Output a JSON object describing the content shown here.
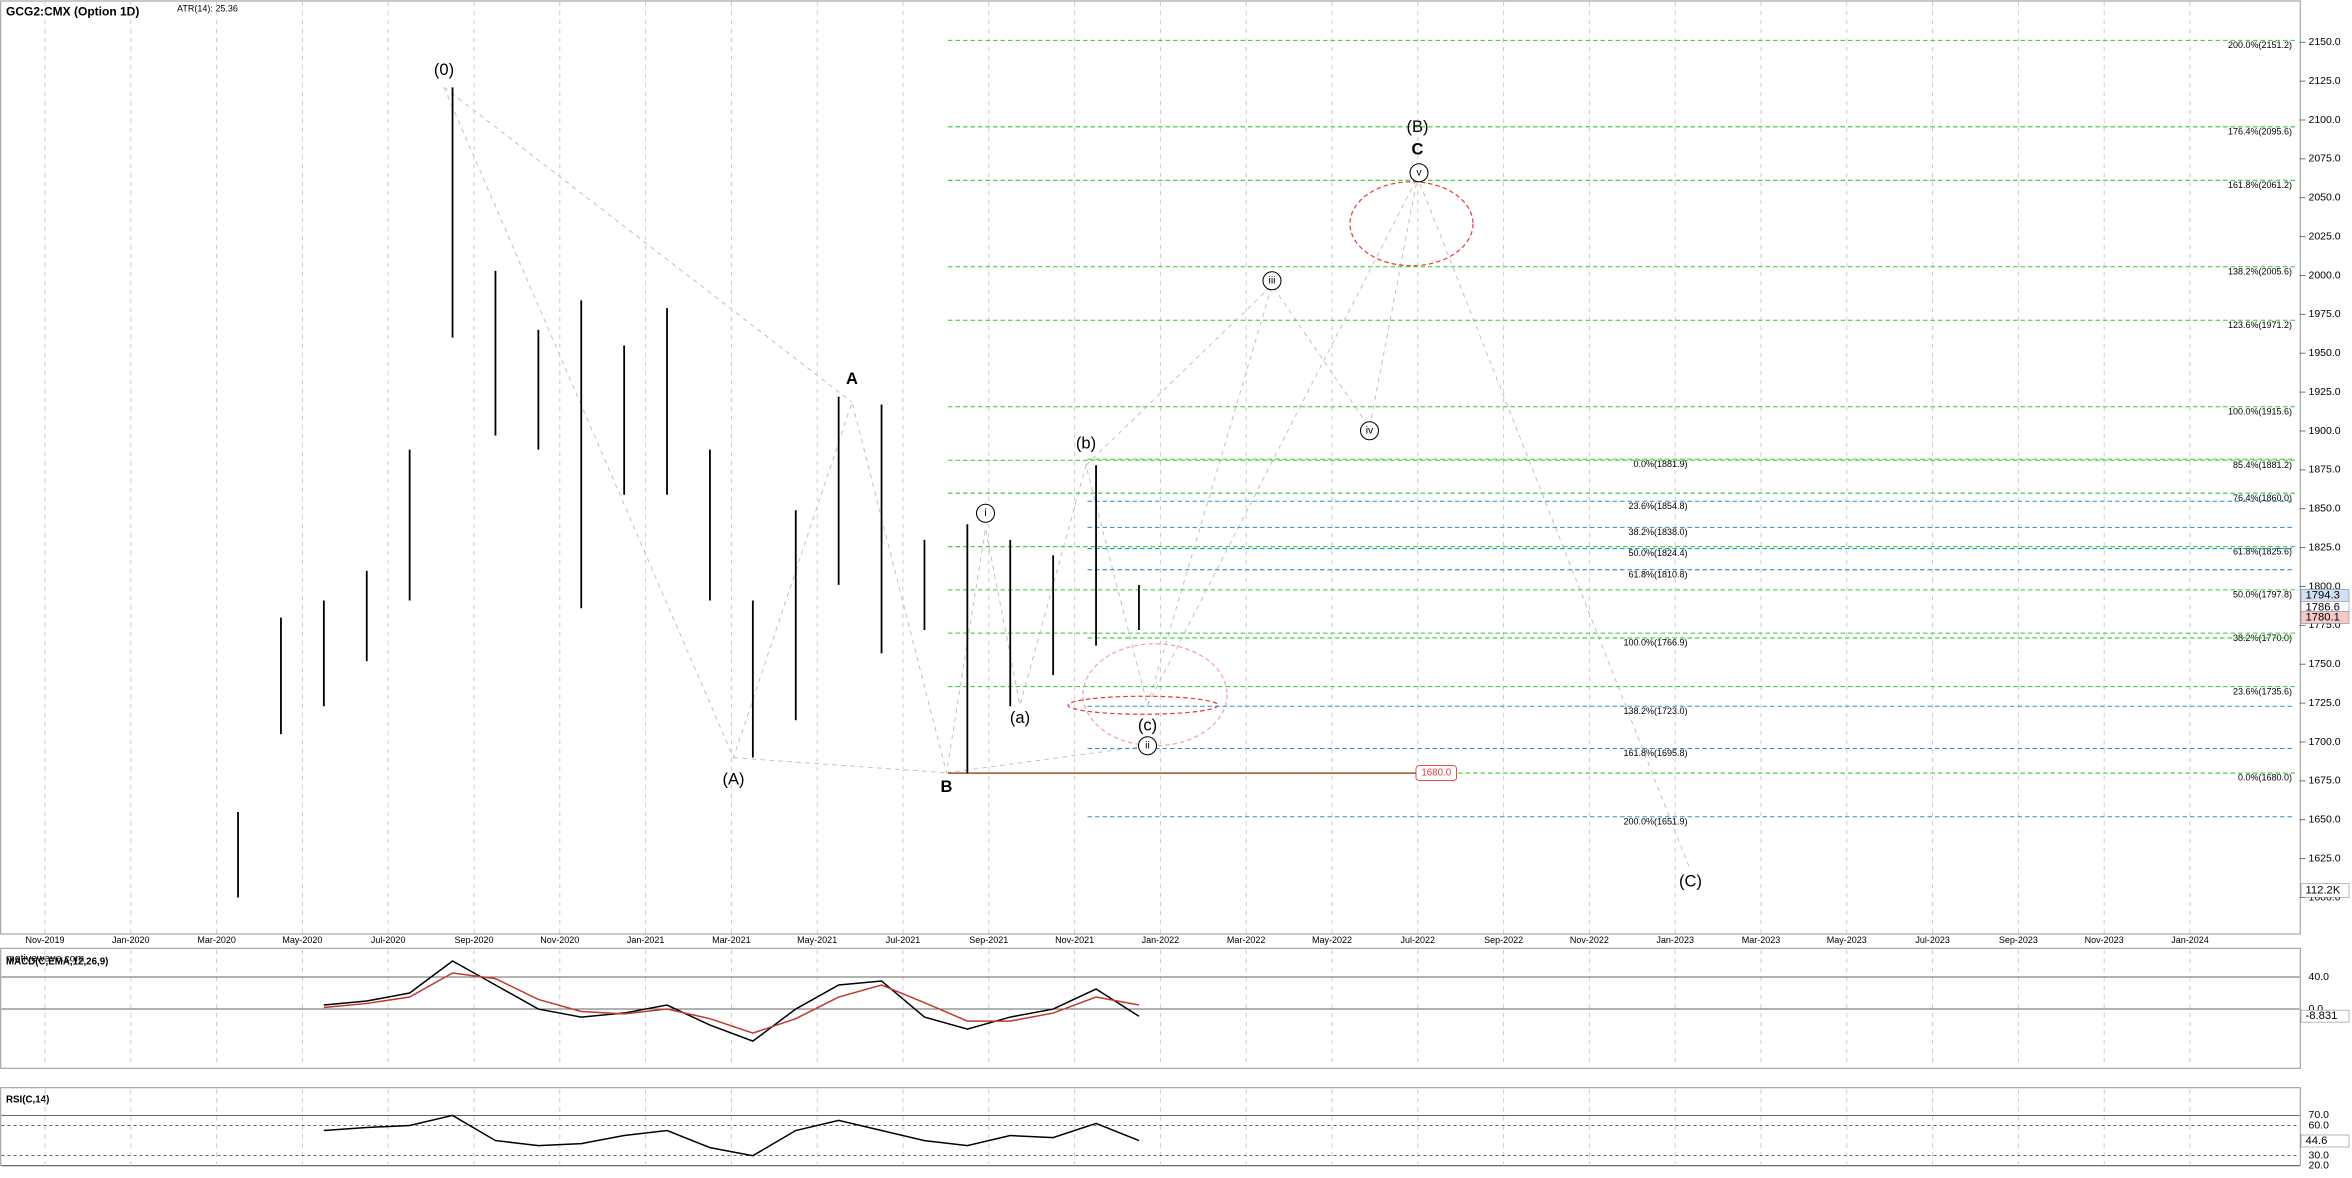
{
  "chart_data": {
    "type": "hilo",
    "title": "GCG2:CMX (Option 1D)",
    "subtitle": "ATR(14): 25.36",
    "watermark": "motivewave.com",
    "xticks": [
      "Nov-2019",
      "Jan-2020",
      "Mar-2020",
      "May-2020",
      "Jul-2020",
      "Sep-2020",
      "Nov-2020",
      "Jan-2021",
      "Mar-2021",
      "May-2021",
      "Jul-2021",
      "Sep-2021",
      "Nov-2021",
      "Jan-2022",
      "Mar-2022",
      "May-2022",
      "Jul-2022",
      "Sep-2022",
      "Nov-2022",
      "Jan-2023",
      "Mar-2023",
      "May-2023",
      "Jul-2023",
      "Sep-2023",
      "Nov-2023",
      "Jan-2024"
    ],
    "categories": [
      "Mar-2020",
      "Apr-2020",
      "May-2020",
      "Jun-2020",
      "Jul-2020",
      "Aug-2020",
      "Sep-2020",
      "Oct-2020",
      "Nov-2020",
      "Dec-2020",
      "Jan-2021",
      "Feb-2021",
      "Mar-2021",
      "Apr-2021",
      "May-2021",
      "Jun-2021",
      "Jul-2021",
      "Aug-2021",
      "Sep-2021",
      "Oct-2021",
      "Nov-2021",
      "Dec-2021"
    ],
    "high": [
      1655,
      1780,
      1791,
      1810,
      1888,
      2121,
      2003,
      1965,
      1984,
      1955,
      1979,
      1888,
      1791,
      1849,
      1922,
      1917,
      1830,
      1840,
      1830,
      1820,
      1878,
      1801
    ],
    "low": [
      1600,
      1705,
      1723,
      1752,
      1791,
      1960,
      1897,
      1888,
      1786,
      1859,
      1859,
      1791,
      1690,
      1714,
      1801,
      1757,
      1772,
      1680,
      1723,
      1743,
      1762,
      1772
    ],
    "color": "#000000",
    "grid": "x",
    "ylim": [
      1577,
      2177
    ],
    "yticks": [
      {
        "value": 1600,
        "label": "1600.0"
      },
      {
        "value": 1625,
        "label": "1625.0"
      },
      {
        "value": 1650,
        "label": "1650.0"
      },
      {
        "value": 1675,
        "label": "1675.0"
      },
      {
        "value": 1700,
        "label": "1700.0"
      },
      {
        "value": 1725,
        "label": "1725.0"
      },
      {
        "value": 1750,
        "label": "1750.0"
      },
      {
        "value": 1775,
        "label": "1775.0"
      },
      {
        "value": 1800,
        "label": "1800.0"
      },
      {
        "value": 1825,
        "label": "1825.0"
      },
      {
        "value": 1850,
        "label": "1850.0"
      },
      {
        "value": 1875,
        "label": "1875.0"
      },
      {
        "value": 1900,
        "label": "1900.0"
      },
      {
        "value": 1925,
        "label": "1925.0"
      },
      {
        "value": 1950,
        "label": "1950.0"
      },
      {
        "value": 1975,
        "label": "1975.0"
      },
      {
        "value": 2000,
        "label": "2000.0"
      },
      {
        "value": 2025,
        "label": "2025.0"
      },
      {
        "value": 2050,
        "label": "2050.0"
      },
      {
        "value": 2075,
        "label": "2075.0"
      },
      {
        "value": 2100,
        "label": "2100.0"
      },
      {
        "value": 2125,
        "label": "2125.0"
      },
      {
        "value": 2150,
        "label": "2150.0"
      }
    ],
    "price_markers": [
      {
        "value": 1794.3,
        "color": "#cfe0f5"
      },
      {
        "value": 1786.6,
        "color": "#ffffff"
      },
      {
        "value": 1780.1,
        "color": "#f6c9c9"
      }
    ],
    "level_marker": {
      "value": 1680,
      "label": "1680.0"
    },
    "volume_marker": {
      "value": 112200,
      "label": "112.2K"
    },
    "fib_groups": [
      {
        "levels": [
          {
            "value": 2151.2,
            "label": "200.0%(2151.2)",
            "color": "#2ecc2e"
          },
          {
            "value": 2095.6,
            "label": "176.4%(2095.6)",
            "color": "#2ecc2e"
          },
          {
            "value": 2061.2,
            "label": "161.8%(2061.2)",
            "color": "#2ecc2e"
          },
          {
            "value": 2005.6,
            "label": "138.2%(2005.6)",
            "color": "#2ecc2e"
          },
          {
            "value": 1971.2,
            "label": "123.6%(1971.2)",
            "color": "#2ecc2e"
          },
          {
            "value": 1915.6,
            "label": "100.0%(1915.6)",
            "color": "#2ecc2e"
          },
          {
            "value": 1881.2,
            "label": "85.4%(1881.2)",
            "color": "#2ecc2e"
          },
          {
            "value": 1860.0,
            "label": "76.4%(1860.0)",
            "color": "#2ecc2e"
          },
          {
            "value": 1825.6,
            "label": "61.8%(1825.6)",
            "color": "#2ecc2e"
          },
          {
            "value": 1797.8,
            "label": "50.0%(1797.8)",
            "color": "#2ecc2e"
          },
          {
            "value": 1770.0,
            "label": "38.2%(1770.0)",
            "color": "#2ecc2e"
          },
          {
            "value": 1735.6,
            "label": "23.6%(1735.6)",
            "color": "#2ecc2e"
          },
          {
            "value": 1680.0,
            "label": "0.0%(1680.0)",
            "color": "#2ecc2e"
          }
        ]
      },
      {
        "levels": [
          {
            "value": 1881.9,
            "label": "0.0%(1881.9)",
            "color": "#2ecc2e"
          },
          {
            "value": 1854.8,
            "label": "23.6%(1854.8)",
            "color": "#2a8fd6"
          },
          {
            "value": 1838.0,
            "label": "38.2%(1838.0)",
            "color": "#2a8fd6"
          },
          {
            "value": 1824.4,
            "label": "50.0%(1824.4)",
            "color": "#2a8fd6"
          },
          {
            "value": 1810.8,
            "label": "61.8%(1810.8)",
            "color": "#2a8fd6"
          },
          {
            "value": 1766.9,
            "label": "100.0%(1766.9)",
            "color": "#2ecc2e"
          },
          {
            "value": 1723.0,
            "label": "138.2%(1723.0)",
            "color": "#2a8fd6"
          },
          {
            "value": 1695.8,
            "label": "161.8%(1695.8)",
            "color": "#2a8fd6"
          },
          {
            "value": 1651.9,
            "label": "200.0%(1651.9)",
            "color": "#2a8fd6"
          }
        ]
      }
    ],
    "waves": [
      {
        "text": "(0)"
      },
      {
        "text": "A"
      },
      {
        "text": "(A)"
      },
      {
        "text": "B"
      },
      {
        "text": "(a)"
      },
      {
        "text": "(b)"
      },
      {
        "text": "(c)"
      },
      {
        "text": "i",
        "circled": true
      },
      {
        "text": "ii",
        "circled": true
      },
      {
        "text": "iii",
        "circled": true
      },
      {
        "text": "iv",
        "circled": true
      },
      {
        "text": "v",
        "circled": true
      },
      {
        "text": "C"
      },
      {
        "text": "(B)"
      },
      {
        "text": "(C)"
      }
    ],
    "macd": {
      "title": "MACD(C,EMA,12,26,9)",
      "ylim": [
        -72,
        74
      ],
      "yticks": [
        {
          "value": 40,
          "label": "40.0"
        },
        {
          "value": 0,
          "label": "0.0"
        }
      ],
      "marker": -8.831,
      "lines": [
        {
          "color": "#000000",
          "values": [
            null,
            null,
            5,
            10,
            20,
            60,
            30,
            0,
            -10,
            -5,
            5,
            -20,
            -40,
            0,
            30,
            35,
            -10,
            -25,
            -10,
            0,
            25,
            -9
          ]
        },
        {
          "color": "#c0392b",
          "values": [
            null,
            null,
            2,
            7,
            15,
            45,
            38,
            12,
            -3,
            -6,
            0,
            -12,
            -30,
            -12,
            15,
            30,
            8,
            -15,
            -15,
            -5,
            15,
            5
          ]
        }
      ]
    },
    "rsi": {
      "title": "RSI(C,14)",
      "ylim": [
        20,
        96
      ],
      "yticks": [
        {
          "value": 70,
          "label": "70.0"
        },
        {
          "value": 60,
          "label": "60.0"
        },
        {
          "value": 30,
          "label": "30.0"
        },
        {
          "value": 20,
          "label": "20.0"
        }
      ],
      "marker": 44.6,
      "lines": [
        {
          "color": "#000000",
          "values": [
            null,
            null,
            55,
            58,
            60,
            70,
            45,
            40,
            42,
            50,
            55,
            38,
            30,
            55,
            65,
            55,
            45,
            40,
            50,
            48,
            62,
            45
          ]
        }
      ]
    }
  }
}
